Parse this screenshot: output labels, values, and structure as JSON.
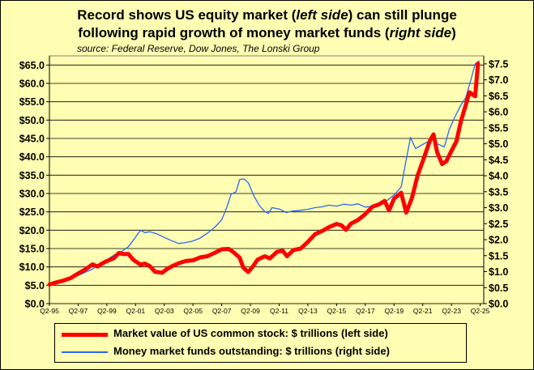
{
  "title_line1": "Record shows US equity market (left side) can still plunge",
  "title_line1_parts": {
    "a": "Record shows US equity market (",
    "b": "left side",
    "c": ") can still plunge"
  },
  "title_line2_parts": {
    "a": "following rapid growth of money market funds (",
    "b": "right side",
    "c": ")"
  },
  "subtitle": "source: Federal Reserve, Dow Jones, The Lonski Group",
  "colors": {
    "background": "#fffeb2",
    "stock": "#ff0000",
    "mmf": "#2a68f5",
    "grid": "#000000"
  },
  "chart_data": {
    "type": "line",
    "x_tick_labels": [
      "Q2-95",
      "Q2-97",
      "Q2-99",
      "Q2-01",
      "Q2-03",
      "Q2-05",
      "Q2-07",
      "Q2-09",
      "Q2-11",
      "Q2-13",
      "Q2-15",
      "Q2-17",
      "Q2-19",
      "Q2-21",
      "Q2-23",
      "Q2-25"
    ],
    "x_range": [
      1995.25,
      2025.5
    ],
    "left_axis": {
      "ylim": [
        0,
        67.5
      ],
      "ticks": [
        0,
        5,
        10,
        15,
        20,
        25,
        30,
        35,
        40,
        45,
        50,
        55,
        60,
        65
      ],
      "tick_labels": [
        "$0.0",
        "$5.0",
        "$10.0",
        "$15.0",
        "$20.0",
        "$25.0",
        "$30.0",
        "$35.0",
        "$40.0",
        "$45.0",
        "$50.0",
        "$55.0",
        "$60.0",
        "$65.0"
      ]
    },
    "right_axis": {
      "ylim": [
        0,
        7.75
      ],
      "ticks": [
        0,
        0.5,
        1,
        1.5,
        2,
        2.5,
        3,
        3.5,
        4,
        4.5,
        5,
        5.5,
        6,
        6.5,
        7,
        7.5
      ],
      "tick_labels": [
        "$0.0",
        "$0.5",
        "$1.0",
        "$1.5",
        "$2.0",
        "$2.5",
        "$3.0",
        "$3.5",
        "$4.0",
        "$4.5",
        "$5.0",
        "$5.5",
        "$6.0",
        "$6.5",
        "$7.0",
        "$7.5"
      ]
    },
    "gridlines": "horizontal",
    "legend_position": "bottom",
    "series": [
      {
        "name": "Market value of US common stock: $ trillions (left side)",
        "axis": "left",
        "points": [
          [
            1995.25,
            5.2
          ],
          [
            1995.75,
            5.8
          ],
          [
            1996.25,
            6.3
          ],
          [
            1996.75,
            7.0
          ],
          [
            1997.25,
            8.2
          ],
          [
            1997.75,
            9.3
          ],
          [
            1998.25,
            10.7
          ],
          [
            1998.6,
            10.1
          ],
          [
            1998.9,
            10.9
          ],
          [
            1999.25,
            11.6
          ],
          [
            1999.75,
            12.4
          ],
          [
            2000.1,
            13.8
          ],
          [
            2000.4,
            13.5
          ],
          [
            2000.75,
            13.5
          ],
          [
            2001.1,
            11.9
          ],
          [
            2001.6,
            10.6
          ],
          [
            2001.9,
            10.9
          ],
          [
            2002.25,
            10.2
          ],
          [
            2002.6,
            8.7
          ],
          [
            2003.1,
            8.4
          ],
          [
            2003.5,
            9.6
          ],
          [
            2003.9,
            10.4
          ],
          [
            2004.25,
            11.0
          ],
          [
            2004.75,
            11.6
          ],
          [
            2005.25,
            11.8
          ],
          [
            2005.75,
            12.6
          ],
          [
            2006.25,
            12.9
          ],
          [
            2006.75,
            13.8
          ],
          [
            2007.25,
            14.8
          ],
          [
            2007.75,
            14.9
          ],
          [
            2008.1,
            13.9
          ],
          [
            2008.5,
            12.5
          ],
          [
            2008.75,
            9.8
          ],
          [
            2009.1,
            8.6
          ],
          [
            2009.4,
            10.0
          ],
          [
            2009.75,
            12.0
          ],
          [
            2010.25,
            12.9
          ],
          [
            2010.6,
            12.3
          ],
          [
            2011.1,
            14.1
          ],
          [
            2011.5,
            14.4
          ],
          [
            2011.8,
            12.9
          ],
          [
            2012.25,
            14.6
          ],
          [
            2012.75,
            15.0
          ],
          [
            2013.25,
            16.8
          ],
          [
            2013.75,
            18.9
          ],
          [
            2014.25,
            19.8
          ],
          [
            2014.75,
            20.9
          ],
          [
            2015.25,
            21.7
          ],
          [
            2015.6,
            21.3
          ],
          [
            2015.9,
            20.1
          ],
          [
            2016.25,
            21.8
          ],
          [
            2016.75,
            22.8
          ],
          [
            2017.25,
            24.4
          ],
          [
            2017.75,
            26.4
          ],
          [
            2018.25,
            27.1
          ],
          [
            2018.6,
            28.0
          ],
          [
            2018.9,
            25.4
          ],
          [
            2019.25,
            28.6
          ],
          [
            2019.75,
            30.2
          ],
          [
            2020.1,
            24.8
          ],
          [
            2020.5,
            28.8
          ],
          [
            2020.9,
            35.0
          ],
          [
            2021.25,
            38.8
          ],
          [
            2021.75,
            44.4
          ],
          [
            2022.0,
            46.1
          ],
          [
            2022.25,
            41.3
          ],
          [
            2022.6,
            38.0
          ],
          [
            2022.9,
            38.8
          ],
          [
            2023.25,
            41.6
          ],
          [
            2023.6,
            44.2
          ],
          [
            2023.9,
            49.5
          ],
          [
            2024.25,
            54.2
          ],
          [
            2024.5,
            57.6
          ],
          [
            2024.9,
            56.5
          ],
          [
            2025.1,
            65.4
          ]
        ]
      },
      {
        "name": "Money market funds outstanding: $ trillions (right side)",
        "axis": "right",
        "points": [
          [
            1995.25,
            0.57
          ],
          [
            1995.75,
            0.64
          ],
          [
            1996.25,
            0.72
          ],
          [
            1996.75,
            0.81
          ],
          [
            1997.25,
            0.88
          ],
          [
            1997.75,
            0.98
          ],
          [
            1998.25,
            1.08
          ],
          [
            1998.75,
            1.25
          ],
          [
            1999.25,
            1.37
          ],
          [
            1999.75,
            1.52
          ],
          [
            2000.25,
            1.62
          ],
          [
            2000.75,
            1.78
          ],
          [
            2001.25,
            2.08
          ],
          [
            2001.6,
            2.3
          ],
          [
            2001.9,
            2.22
          ],
          [
            2002.25,
            2.25
          ],
          [
            2002.75,
            2.18
          ],
          [
            2003.25,
            2.07
          ],
          [
            2003.75,
            1.97
          ],
          [
            2004.25,
            1.88
          ],
          [
            2004.75,
            1.91
          ],
          [
            2005.25,
            1.96
          ],
          [
            2005.75,
            2.05
          ],
          [
            2006.25,
            2.2
          ],
          [
            2006.75,
            2.38
          ],
          [
            2007.25,
            2.62
          ],
          [
            2007.6,
            3.0
          ],
          [
            2007.9,
            3.42
          ],
          [
            2008.25,
            3.5
          ],
          [
            2008.5,
            3.88
          ],
          [
            2008.8,
            3.9
          ],
          [
            2009.1,
            3.78
          ],
          [
            2009.5,
            3.36
          ],
          [
            2009.9,
            3.05
          ],
          [
            2010.25,
            2.88
          ],
          [
            2010.5,
            2.82
          ],
          [
            2010.75,
            3.0
          ],
          [
            2011.25,
            2.96
          ],
          [
            2011.75,
            2.85
          ],
          [
            2012.25,
            2.9
          ],
          [
            2012.75,
            2.92
          ],
          [
            2013.25,
            2.95
          ],
          [
            2013.75,
            3.0
          ],
          [
            2014.25,
            3.03
          ],
          [
            2014.75,
            3.08
          ],
          [
            2015.25,
            3.05
          ],
          [
            2015.75,
            3.11
          ],
          [
            2016.25,
            3.08
          ],
          [
            2016.75,
            3.12
          ],
          [
            2017.25,
            3.02
          ],
          [
            2017.75,
            3.05
          ],
          [
            2018.25,
            3.1
          ],
          [
            2018.75,
            3.22
          ],
          [
            2019.25,
            3.4
          ],
          [
            2019.75,
            3.65
          ],
          [
            2020.1,
            4.5
          ],
          [
            2020.4,
            5.2
          ],
          [
            2020.75,
            4.85
          ],
          [
            2021.25,
            4.98
          ],
          [
            2021.75,
            5.1
          ],
          [
            2022.0,
            5.15
          ],
          [
            2022.25,
            5.0
          ],
          [
            2022.75,
            4.9
          ],
          [
            2023.1,
            5.45
          ],
          [
            2023.5,
            5.85
          ],
          [
            2023.9,
            6.2
          ],
          [
            2024.25,
            6.45
          ],
          [
            2024.6,
            7.0
          ],
          [
            2024.9,
            7.5
          ],
          [
            2025.2,
            7.6
          ]
        ]
      }
    ]
  }
}
